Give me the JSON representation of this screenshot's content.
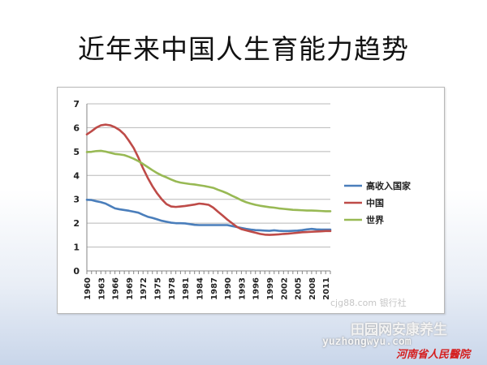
{
  "title": "近年来中国人生育能力趋势",
  "watermarks": {
    "chart_mark": "cjg88.com 银行社",
    "site_cn": "田园网安康养生",
    "site_url": "yuzhongwyu.com",
    "hospital": "河南省人民醫院"
  },
  "colors": {
    "high_income": "#4A7EBB",
    "china": "#BE4B48",
    "world": "#98B954",
    "grid": "#b8b8b8",
    "axis": "#868686"
  },
  "chart_data": {
    "type": "line",
    "title": "",
    "xlabel": "",
    "ylabel": "",
    "ylim": [
      0,
      7
    ],
    "yticks": [
      0,
      1,
      2,
      3,
      4,
      5,
      6,
      7
    ],
    "xlim": [
      1960,
      2012
    ],
    "xtick_labels": [
      "1960",
      "1963",
      "1966",
      "1969",
      "1972",
      "1975",
      "1978",
      "1981",
      "1984",
      "1987",
      "1990",
      "1993",
      "1996",
      "1999",
      "2002",
      "2005",
      "2008",
      "2011"
    ],
    "grid": "horizontal",
    "legend": "right",
    "series": [
      {
        "name": "高收入国家",
        "color_key": "high_income",
        "x": [
          1960,
          1961,
          1962,
          1963,
          1964,
          1965,
          1966,
          1967,
          1968,
          1969,
          1970,
          1971,
          1972,
          1973,
          1974,
          1975,
          1976,
          1977,
          1978,
          1979,
          1980,
          1981,
          1982,
          1983,
          1984,
          1985,
          1986,
          1987,
          1988,
          1989,
          1990,
          1991,
          1992,
          1993,
          1994,
          1995,
          1996,
          1997,
          1998,
          1999,
          2000,
          2001,
          2002,
          2003,
          2004,
          2005,
          2006,
          2007,
          2008,
          2009,
          2010,
          2011,
          2012
        ],
        "values": [
          2.98,
          2.97,
          2.92,
          2.88,
          2.82,
          2.72,
          2.62,
          2.58,
          2.55,
          2.52,
          2.48,
          2.44,
          2.35,
          2.27,
          2.22,
          2.16,
          2.1,
          2.06,
          2.02,
          2.0,
          2.0,
          1.99,
          1.96,
          1.93,
          1.92,
          1.92,
          1.92,
          1.92,
          1.92,
          1.92,
          1.92,
          1.88,
          1.84,
          1.8,
          1.76,
          1.73,
          1.71,
          1.7,
          1.69,
          1.68,
          1.7,
          1.68,
          1.67,
          1.67,
          1.68,
          1.69,
          1.71,
          1.74,
          1.76,
          1.74,
          1.73,
          1.73,
          1.73
        ]
      },
      {
        "name": "中国",
        "color_key": "china",
        "x": [
          1960,
          1961,
          1962,
          1963,
          1964,
          1965,
          1966,
          1967,
          1968,
          1969,
          1970,
          1971,
          1972,
          1973,
          1974,
          1975,
          1976,
          1977,
          1978,
          1979,
          1980,
          1981,
          1982,
          1983,
          1984,
          1985,
          1986,
          1987,
          1988,
          1989,
          1990,
          1991,
          1992,
          1993,
          1994,
          1995,
          1996,
          1997,
          1998,
          1999,
          2000,
          2001,
          2002,
          2003,
          2004,
          2005,
          2006,
          2007,
          2008,
          2009,
          2010,
          2011,
          2012
        ],
        "values": [
          5.72,
          5.85,
          6.0,
          6.1,
          6.13,
          6.1,
          6.02,
          5.9,
          5.72,
          5.45,
          5.15,
          4.75,
          4.3,
          3.9,
          3.55,
          3.25,
          3.0,
          2.8,
          2.7,
          2.68,
          2.7,
          2.72,
          2.75,
          2.78,
          2.82,
          2.8,
          2.77,
          2.65,
          2.48,
          2.32,
          2.15,
          2.0,
          1.85,
          1.75,
          1.7,
          1.65,
          1.6,
          1.55,
          1.52,
          1.51,
          1.52,
          1.53,
          1.55,
          1.56,
          1.58,
          1.6,
          1.62,
          1.63,
          1.64,
          1.65,
          1.66,
          1.67,
          1.67
        ]
      },
      {
        "name": "世界",
        "color_key": "world",
        "x": [
          1960,
          1961,
          1962,
          1963,
          1964,
          1965,
          1966,
          1967,
          1968,
          1969,
          1970,
          1971,
          1972,
          1973,
          1974,
          1975,
          1976,
          1977,
          1978,
          1979,
          1980,
          1981,
          1982,
          1983,
          1984,
          1985,
          1986,
          1987,
          1988,
          1989,
          1990,
          1991,
          1992,
          1993,
          1994,
          1995,
          1996,
          1997,
          1998,
          1999,
          2000,
          2001,
          2002,
          2003,
          2004,
          2005,
          2006,
          2007,
          2008,
          2009,
          2010,
          2011,
          2012
        ],
        "values": [
          4.98,
          4.99,
          5.02,
          5.03,
          5.0,
          4.95,
          4.9,
          4.88,
          4.85,
          4.78,
          4.7,
          4.6,
          4.48,
          4.35,
          4.22,
          4.1,
          4.0,
          3.92,
          3.83,
          3.75,
          3.7,
          3.67,
          3.64,
          3.62,
          3.59,
          3.56,
          3.52,
          3.48,
          3.4,
          3.33,
          3.25,
          3.15,
          3.06,
          2.96,
          2.88,
          2.82,
          2.77,
          2.73,
          2.7,
          2.67,
          2.65,
          2.62,
          2.6,
          2.58,
          2.56,
          2.55,
          2.54,
          2.53,
          2.53,
          2.52,
          2.51,
          2.5,
          2.5
        ]
      }
    ]
  }
}
